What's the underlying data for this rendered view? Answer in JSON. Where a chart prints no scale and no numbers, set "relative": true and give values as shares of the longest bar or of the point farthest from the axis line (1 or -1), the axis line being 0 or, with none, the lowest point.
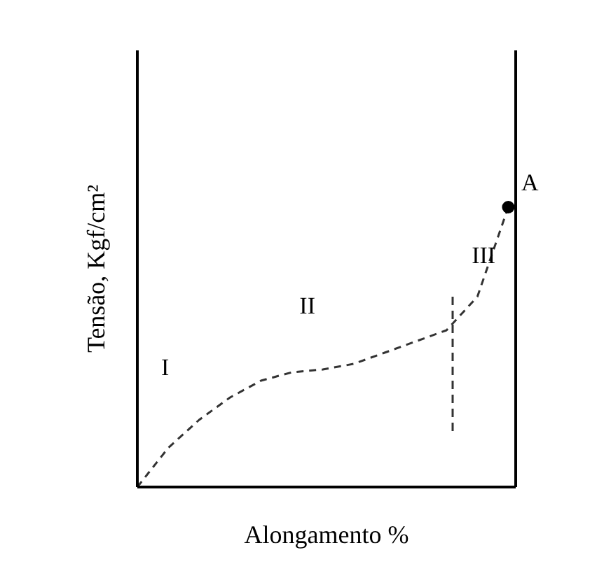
{
  "chart_data": {
    "type": "line",
    "relative": true,
    "xlabel": "Alongamento %",
    "ylabel": "Tensão, Kgf/cm²",
    "line_style": "dashed",
    "grid": false,
    "categories": [
      null,
      null,
      null,
      null,
      null,
      null,
      null,
      null,
      null,
      null,
      null,
      null,
      null
    ],
    "series": [
      {
        "color": "#333333",
        "values": [
          0,
          0.14,
          0.24,
          0.32,
          0.38,
          0.41,
          0.42,
          0.44,
          0.48,
          0.52,
          0.56,
          0.68,
          1
        ]
      }
    ],
    "annotations": [
      "I",
      "II",
      "III",
      "A"
    ]
  }
}
